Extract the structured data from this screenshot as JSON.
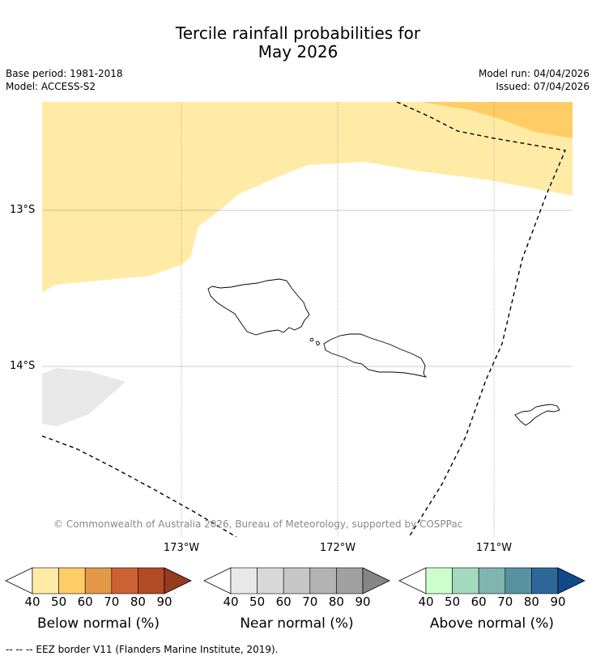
{
  "header": {
    "title_line1": "Tercile rainfall probabilities for",
    "title_line2": "May 2026",
    "base_period": "Base period: 1981-2018",
    "model": "Model: ACCESS-S2",
    "model_run": "Model run: 04/04/2026",
    "issued": "Issued: 07/04/2026"
  },
  "map": {
    "lat_labels": [
      "13°S",
      "14°S"
    ],
    "lon_labels": [
      "173°W",
      "172°W",
      "171°W"
    ],
    "copyright": "© Commonwealth of Australia 2026, Bureau of Meteorology, supported by COSPPac",
    "colors": {
      "below_40_50": "#ffeba5",
      "below_50_60": "#ffcc66",
      "near_40_50": "#e8e8e8",
      "land_outline": "#000000",
      "grid": "#888888"
    }
  },
  "colorbars": [
    {
      "name": "below",
      "title": "Below normal (%)",
      "ticks": [
        "40",
        "50",
        "60",
        "70",
        "80",
        "90"
      ],
      "colors": [
        "#ffeba5",
        "#ffcc66",
        "#e39847",
        "#cc6233",
        "#b04b25",
        "#973a1e"
      ]
    },
    {
      "name": "near",
      "title": "Near normal (%)",
      "ticks": [
        "40",
        "50",
        "60",
        "70",
        "80",
        "90"
      ],
      "colors": [
        "#e8e8e8",
        "#d8d8d8",
        "#c6c6c6",
        "#b2b2b2",
        "#a0a0a0",
        "#858585"
      ]
    },
    {
      "name": "above",
      "title": "Above normal (%)",
      "ticks": [
        "40",
        "50",
        "60",
        "70",
        "80",
        "90"
      ],
      "colors": [
        "#ccffcc",
        "#a3d9bd",
        "#80b5b0",
        "#5891a0",
        "#2f6699",
        "#114a8a"
      ]
    }
  ],
  "footer": {
    "eez_note": "--  --  -- EEZ border V11 (Flanders Marine Institute, 2019)."
  }
}
